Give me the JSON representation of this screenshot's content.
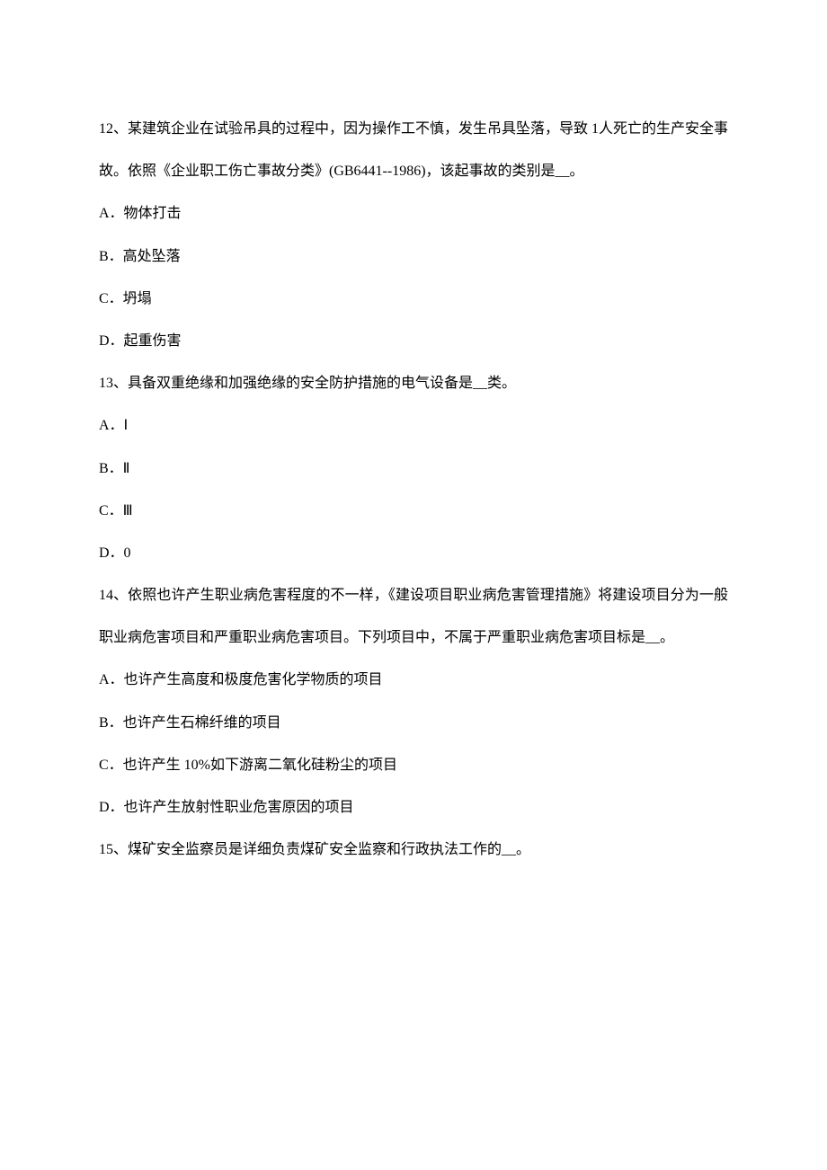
{
  "font_family": "SimSun",
  "font_size_pt": 16,
  "line_height": 2.95,
  "text_color": "#000000",
  "background_color": "#ffffff",
  "questions": [
    {
      "number": "12",
      "stem": "12、某建筑企业在试验吊具的过程中，因为操作工不慎，发生吊具坠落，导致 1人死亡的生产安全事故。依照《企业职工伤亡事故分类》(GB6441--1986)，该起事故的类别是__。",
      "options": {
        "A": "A．物体打击",
        "B": "B．高处坠落",
        "C": "C．坍塌",
        "D": "D．起重伤害"
      }
    },
    {
      "number": "13",
      "stem": "13、具备双重绝缘和加强绝缘的安全防护措施的电气设备是__类。",
      "options": {
        "A": "A．Ⅰ",
        "B": "B．Ⅱ",
        "C": "C．Ⅲ",
        "D": "D．0"
      }
    },
    {
      "number": "14",
      "stem": "14、依照也许产生职业病危害程度的不一样，《建设项目职业病危害管理措施》将建设项目分为一般职业病危害项目和严重职业病危害项目。下列项目中，不属于严重职业病危害项目标是__。",
      "options": {
        "A": "A．也许产生高度和极度危害化学物质的项目",
        "B": "B．也许产生石棉纤维的项目",
        "C": "C．也许产生 10%如下游离二氧化硅粉尘的项目",
        "D": "D．也许产生放射性职业危害原因的项目"
      }
    },
    {
      "number": "15",
      "stem": "15、煤矿安全监察员是详细负责煤矿安全监察和行政执法工作的__。",
      "options": {}
    }
  ]
}
